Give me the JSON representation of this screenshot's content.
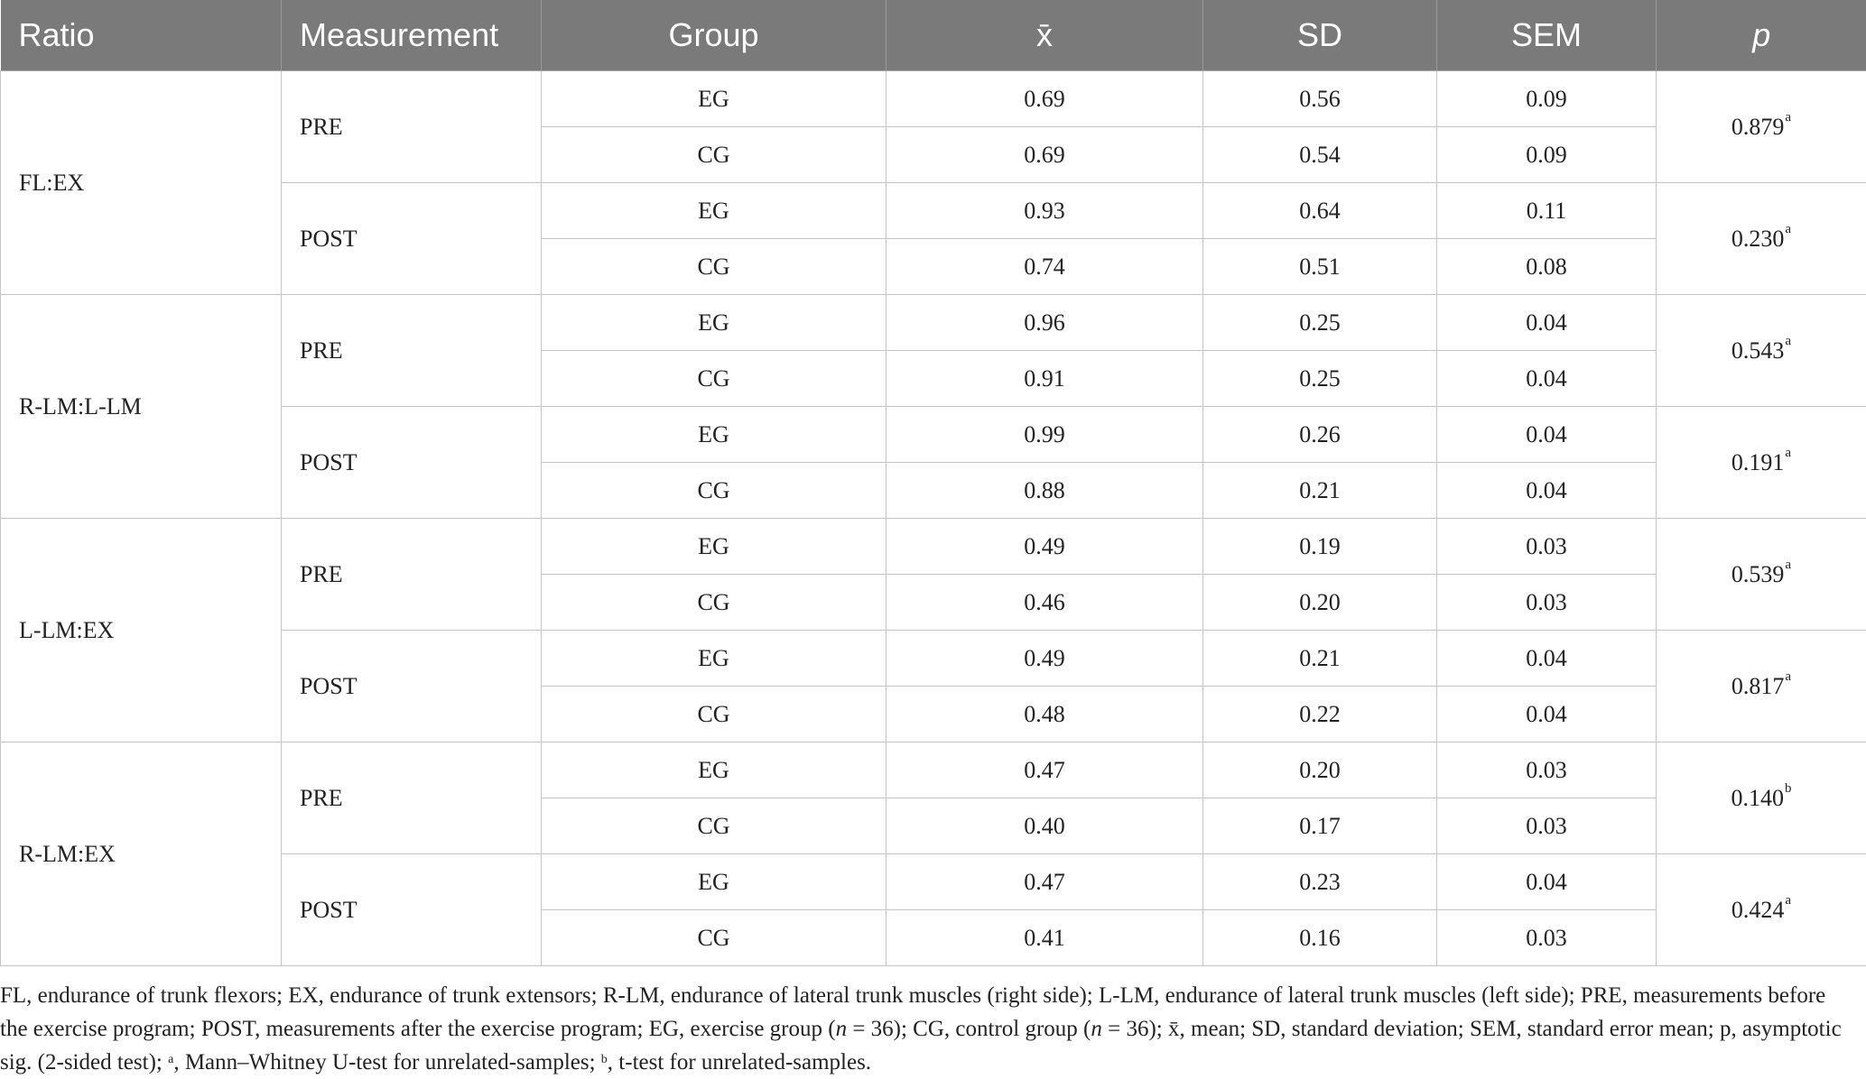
{
  "table": {
    "headers": {
      "ratio": "Ratio",
      "measurement": "Measurement",
      "group": "Group",
      "mean": "x̄",
      "sd": "SD",
      "sem": "SEM",
      "p": "p"
    },
    "ratios": [
      {
        "label": "FL:EX",
        "measurements": [
          {
            "label": "PRE",
            "p": "0.879",
            "p_mark": "a",
            "rows": [
              {
                "group": "EG",
                "mean": "0.69",
                "sd": "0.56",
                "sem": "0.09"
              },
              {
                "group": "CG",
                "mean": "0.69",
                "sd": "0.54",
                "sem": "0.09"
              }
            ]
          },
          {
            "label": "POST",
            "p": "0.230",
            "p_mark": "a",
            "rows": [
              {
                "group": "EG",
                "mean": "0.93",
                "sd": "0.64",
                "sem": "0.11"
              },
              {
                "group": "CG",
                "mean": "0.74",
                "sd": "0.51",
                "sem": "0.08"
              }
            ]
          }
        ]
      },
      {
        "label": "R-LM:L-LM",
        "measurements": [
          {
            "label": "PRE",
            "p": "0.543",
            "p_mark": "a",
            "rows": [
              {
                "group": "EG",
                "mean": "0.96",
                "sd": "0.25",
                "sem": "0.04"
              },
              {
                "group": "CG",
                "mean": "0.91",
                "sd": "0.25",
                "sem": "0.04"
              }
            ]
          },
          {
            "label": "POST",
            "p": "0.191",
            "p_mark": "a",
            "rows": [
              {
                "group": "EG",
                "mean": "0.99",
                "sd": "0.26",
                "sem": "0.04"
              },
              {
                "group": "CG",
                "mean": "0.88",
                "sd": "0.21",
                "sem": "0.04"
              }
            ]
          }
        ]
      },
      {
        "label": "L-LM:EX",
        "measurements": [
          {
            "label": "PRE",
            "p": "0.539",
            "p_mark": "a",
            "rows": [
              {
                "group": "EG",
                "mean": "0.49",
                "sd": "0.19",
                "sem": "0.03"
              },
              {
                "group": "CG",
                "mean": "0.46",
                "sd": "0.20",
                "sem": "0.03"
              }
            ]
          },
          {
            "label": "POST",
            "p": "0.817",
            "p_mark": "a",
            "rows": [
              {
                "group": "EG",
                "mean": "0.49",
                "sd": "0.21",
                "sem": "0.04"
              },
              {
                "group": "CG",
                "mean": "0.48",
                "sd": "0.22",
                "sem": "0.04"
              }
            ]
          }
        ]
      },
      {
        "label": "R-LM:EX",
        "measurements": [
          {
            "label": "PRE",
            "p": "0.140",
            "p_mark": "b",
            "rows": [
              {
                "group": "EG",
                "mean": "0.47",
                "sd": "0.20",
                "sem": "0.03"
              },
              {
                "group": "CG",
                "mean": "0.40",
                "sd": "0.17",
                "sem": "0.03"
              }
            ]
          },
          {
            "label": "POST",
            "p": "0.424",
            "p_mark": "a",
            "rows": [
              {
                "group": "EG",
                "mean": "0.47",
                "sd": "0.23",
                "sem": "0.04"
              },
              {
                "group": "CG",
                "mean": "0.41",
                "sd": "0.16",
                "sem": "0.03"
              }
            ]
          }
        ]
      }
    ]
  },
  "footnote": {
    "part1": "FL, endurance of trunk flexors; EX, endurance of trunk extensors; R-LM, endurance of lateral trunk muscles (right side); L-LM, endurance of lateral trunk muscles (left side); PRE, measurements before the exercise program; POST, measurements after the exercise program; EG, exercise group (",
    "n_symbol": "n",
    "part2": " = 36); CG, control group (",
    "part3": " = 36); x̄, mean; SD, standard deviation; SEM, standard error mean; p, asymptotic sig. (2-sided test); ",
    "mark_a": "a",
    "part4": ", Mann–Whitney U-test for unrelated-samples; ",
    "mark_b": "b",
    "part5": ", t-test for unrelated-samples."
  },
  "colors": {
    "header_bg": "#7a7a7a",
    "header_text": "#ffffff",
    "grid": "#c4c4c4"
  }
}
